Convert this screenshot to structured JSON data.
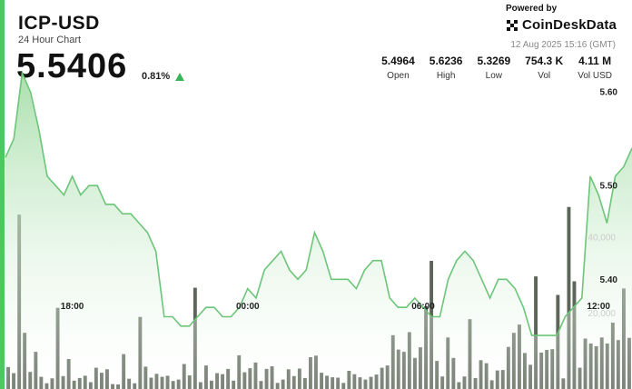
{
  "header": {
    "symbol": "ICP-USD",
    "subtitle": "24 Hour Chart",
    "price": "5.5406",
    "change": "0.81%",
    "trend_icon": "triangle-up",
    "powered_by": "Powered by",
    "brand": "CoinDeskData",
    "timestamp": "12 Aug 2025 15:16 (GMT)"
  },
  "stats": [
    {
      "value": "5.4964",
      "label": "Open"
    },
    {
      "value": "5.6236",
      "label": "High"
    },
    {
      "value": "5.3269",
      "label": "Low"
    },
    {
      "value": "754.3 K",
      "label": "Vol"
    },
    {
      "value": "4.11 M",
      "label": "Vol USD"
    }
  ],
  "colors": {
    "accent": "#4cc862",
    "line": "#6cc578",
    "volume": "#5c6658"
  },
  "chart_data": {
    "type": "area",
    "x_ticks": [
      "18:00",
      "00:00",
      "06:00",
      "12:00"
    ],
    "x_tick_index": [
      8,
      29,
      50,
      71
    ],
    "y_ticks": [
      5.6,
      5.5,
      5.4
    ],
    "y_tick_labels": [
      "5.60",
      "5.50",
      "5.40"
    ],
    "ylim": [
      5.31,
      5.64
    ],
    "volume_ticks": [
      40000,
      20000
    ],
    "volume_tick_labels": [
      "40,000",
      "20,000"
    ],
    "volume_ylim": [
      0,
      58000
    ],
    "series": [
      {
        "values": [
          5.53,
          5.55,
          5.62,
          5.6,
          5.56,
          5.51,
          5.5,
          5.49,
          5.51,
          5.49,
          5.5,
          5.5,
          5.48,
          5.48,
          5.47,
          5.47,
          5.46,
          5.45,
          5.43,
          5.36,
          5.36,
          5.35,
          5.35,
          5.36,
          5.37,
          5.37,
          5.36,
          5.36,
          5.37,
          5.39,
          5.38,
          5.41,
          5.42,
          5.43,
          5.41,
          5.4,
          5.41,
          5.45,
          5.43,
          5.4,
          5.4,
          5.4,
          5.39,
          5.41,
          5.42,
          5.42,
          5.38,
          5.37,
          5.37,
          5.38,
          5.37,
          5.36,
          5.36,
          5.4,
          5.42,
          5.43,
          5.42,
          5.4,
          5.38,
          5.4,
          5.4,
          5.39,
          5.37,
          5.34,
          5.34,
          5.34,
          5.34,
          5.36,
          5.37,
          5.38,
          5.51,
          5.49,
          5.46,
          5.51,
          5.52,
          5.54
        ]
      },
      {
        "type": "bar",
        "values": [
          5800,
          4200,
          46000,
          14800,
          4500,
          9800,
          3200,
          1500,
          2800,
          21400,
          3400,
          7900,
          2200,
          2900,
          3500,
          1800,
          5600,
          4300,
          5200,
          1300,
          1200,
          9200,
          2700,
          1500,
          19000,
          5900,
          3000,
          4000,
          3200,
          3500,
          2100,
          2500,
          6600,
          3600,
          26700,
          1800,
          6200,
          2200,
          4200,
          3900,
          5300,
          2200,
          8900,
          4400,
          5500,
          7000,
          2100,
          5300,
          6000,
          1600,
          2500,
          5200,
          3400,
          5400,
          2900,
          8400,
          8800,
          4300,
          3500,
          3100,
          3000,
          1600,
          4800,
          3900,
          3100,
          2500,
          3200,
          3800,
          5600,
          6200,
          14200,
          10400,
          9800,
          15000,
          8200,
          11000,
          21800,
          33800,
          7400,
          3300,
          13600,
          8200,
          1800,
          3300,
          18400,
          2900,
          7600,
          6800,
          2300,
          4900,
          5000,
          11100,
          14800,
          17000,
          9500,
          6400,
          29700,
          9600,
          10300,
          10500,
          24800,
          2800,
          48000,
          28400,
          5600,
          13300,
          12000,
          11300,
          13600,
          12000,
          17500,
          12900,
          26500,
          13500
        ]
      }
    ]
  }
}
